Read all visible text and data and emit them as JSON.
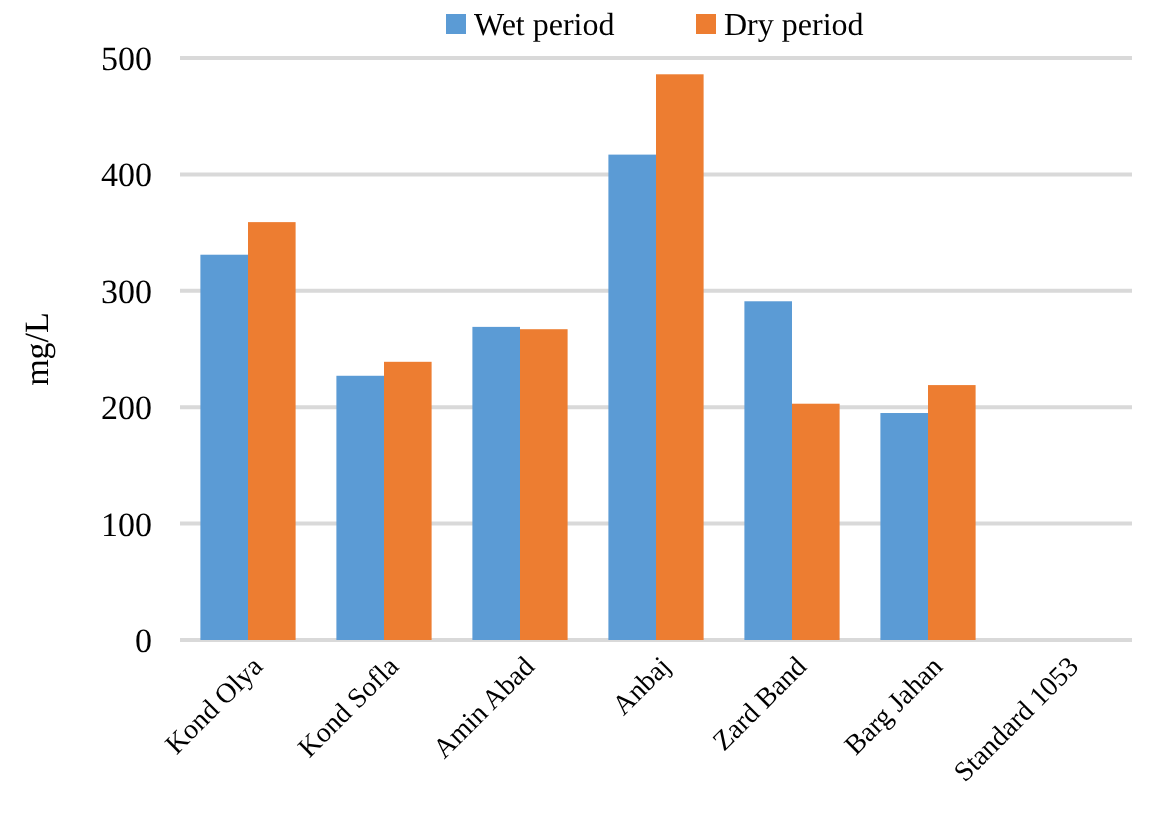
{
  "chart_data": {
    "type": "bar",
    "ylabel": "mg/L",
    "categories": [
      "Kond Olya",
      "Kond Sofla",
      "Amin Abad",
      "Anbaj",
      "Zard Band",
      "Barg Jahan",
      "Standard 1053"
    ],
    "series": [
      {
        "name": "Wet period",
        "color": "#5b9bd5",
        "values": [
          331,
          227,
          269,
          417,
          291,
          195,
          null
        ]
      },
      {
        "name": "Dry period",
        "color": "#ed7d31",
        "values": [
          359,
          239,
          267,
          486,
          203,
          219,
          null
        ]
      }
    ],
    "ylim": [
      0,
      500
    ],
    "yticks": [
      0,
      100,
      200,
      300,
      400,
      500
    ],
    "grid": "y",
    "legend": "top"
  }
}
